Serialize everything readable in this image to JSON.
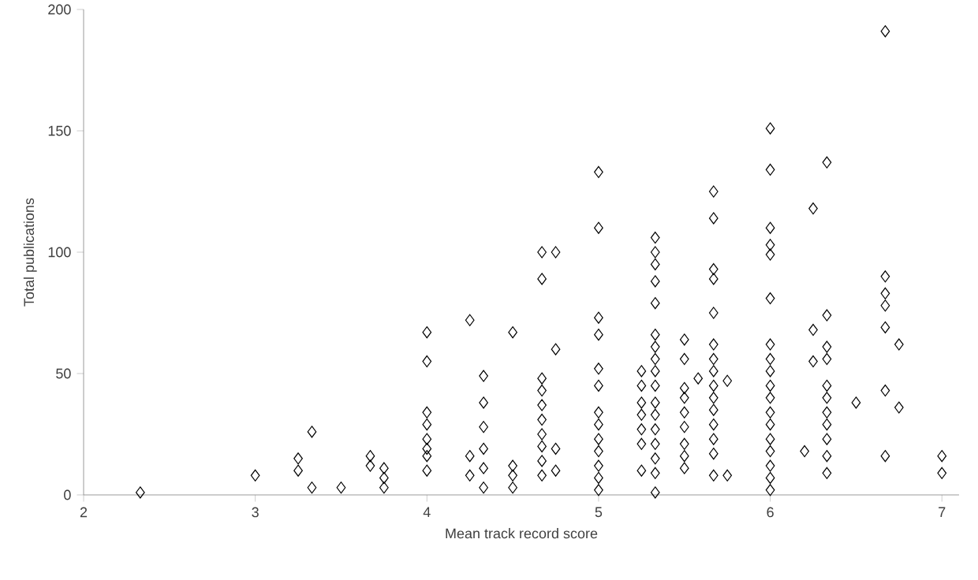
{
  "chart_data": {
    "type": "scatter",
    "xlabel": "Mean track record score",
    "ylabel": "Total publications",
    "x": [
      2.33,
      3.0,
      3.25,
      3.25,
      3.33,
      3.33,
      3.5,
      3.67,
      3.67,
      3.75,
      3.75,
      3.75,
      4.0,
      4.0,
      4.0,
      4.0,
      4.0,
      4.0,
      4.0,
      4.0,
      4.25,
      4.25,
      4.25,
      4.33,
      4.33,
      4.33,
      4.33,
      4.33,
      4.33,
      4.5,
      4.5,
      4.5,
      4.5,
      4.67,
      4.67,
      4.67,
      4.67,
      4.67,
      4.67,
      4.67,
      4.67,
      4.67,
      4.67,
      4.75,
      4.75,
      4.75,
      4.75,
      5.0,
      5.0,
      5.0,
      5.0,
      5.0,
      5.0,
      5.0,
      5.0,
      5.0,
      5.0,
      5.0,
      5.0,
      5.0,
      5.25,
      5.25,
      5.25,
      5.25,
      5.25,
      5.25,
      5.25,
      5.33,
      5.33,
      5.33,
      5.33,
      5.33,
      5.33,
      5.33,
      5.33,
      5.33,
      5.33,
      5.33,
      5.33,
      5.33,
      5.33,
      5.33,
      5.33,
      5.33,
      5.5,
      5.5,
      5.5,
      5.5,
      5.5,
      5.5,
      5.5,
      5.5,
      5.5,
      5.58,
      5.67,
      5.67,
      5.67,
      5.67,
      5.67,
      5.67,
      5.67,
      5.67,
      5.67,
      5.67,
      5.67,
      5.67,
      5.67,
      5.67,
      5.67,
      5.75,
      5.75,
      6.0,
      6.0,
      6.0,
      6.0,
      6.0,
      6.0,
      6.0,
      6.0,
      6.0,
      6.0,
      6.0,
      6.0,
      6.0,
      6.0,
      6.0,
      6.0,
      6.0,
      6.0,
      6.2,
      6.25,
      6.25,
      6.25,
      6.33,
      6.33,
      6.33,
      6.33,
      6.33,
      6.33,
      6.33,
      6.33,
      6.33,
      6.33,
      6.33,
      6.5,
      6.67,
      6.67,
      6.67,
      6.67,
      6.67,
      6.67,
      6.67,
      6.75,
      6.75,
      7.0,
      7.0
    ],
    "values": [
      1,
      8,
      15,
      10,
      26,
      3,
      3,
      16,
      12,
      11,
      7,
      3,
      67,
      55,
      34,
      29,
      23,
      19,
      16,
      10,
      72,
      16,
      8,
      49,
      38,
      28,
      19,
      11,
      3,
      67,
      12,
      8,
      3,
      100,
      89,
      48,
      43,
      37,
      31,
      25,
      20,
      14,
      8,
      100,
      60,
      19,
      10,
      133,
      110,
      73,
      66,
      52,
      45,
      34,
      29,
      23,
      18,
      12,
      7,
      2,
      51,
      45,
      38,
      33,
      27,
      21,
      10,
      106,
      100,
      95,
      88,
      79,
      66,
      61,
      56,
      51,
      45,
      38,
      33,
      27,
      21,
      15,
      9,
      1,
      64,
      56,
      44,
      40,
      34,
      28,
      21,
      16,
      11,
      48,
      125,
      114,
      93,
      89,
      75,
      62,
      56,
      51,
      45,
      40,
      35,
      29,
      23,
      17,
      8,
      47,
      8,
      151,
      134,
      110,
      103,
      99,
      81,
      62,
      56,
      51,
      45,
      40,
      34,
      29,
      23,
      18,
      12,
      7,
      2,
      18,
      118,
      68,
      55,
      137,
      74,
      61,
      56,
      45,
      40,
      34,
      29,
      23,
      16,
      9,
      38,
      191,
      90,
      83,
      78,
      69,
      43,
      16,
      62,
      36,
      16,
      9
    ],
    "color": "#000000",
    "marker": "diamond",
    "xlim": [
      2,
      7.1
    ],
    "ylim": [
      0,
      200
    ],
    "xticks": [
      2,
      3,
      4,
      5,
      6,
      7
    ],
    "yticks": [
      0,
      50,
      100,
      150,
      200
    ]
  }
}
